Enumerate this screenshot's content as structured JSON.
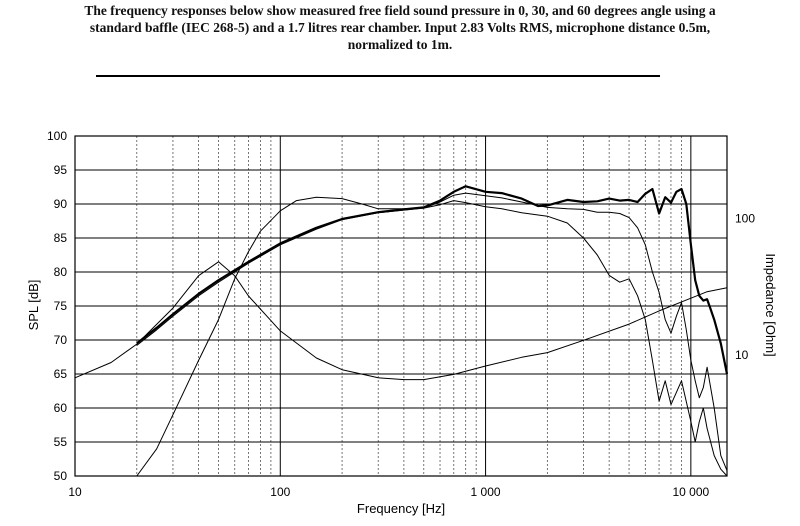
{
  "caption": {
    "line1": "The frequency responses below show measured free field sound pressure in 0, 30, and 60 degrees angle using a",
    "line2": "standard baffle (IEC 268-5)  and a 1.7 litres rear chamber.  Input 2.83 Volts RMS, microphone distance 0.5m,",
    "line3": "normalized to 1m."
  },
  "chart_data": {
    "type": "line",
    "xlabel": "Frequency [Hz]",
    "ylabel": "SPL [dB]",
    "y2label": "Impedance [Ohm]",
    "x_scale": "log",
    "xlim": [
      10,
      15000
    ],
    "ylim": [
      50,
      100
    ],
    "y2_scale": "log",
    "y2lim": [
      1.3,
      400
    ],
    "grid": true,
    "x_ticks": [
      {
        "value": 10,
        "label": "10"
      },
      {
        "value": 100,
        "label": "100"
      },
      {
        "value": 1000,
        "label": "1 000"
      },
      {
        "value": 10000,
        "label": "10 000"
      }
    ],
    "y_ticks": [
      {
        "value": 50,
        "label": "50"
      },
      {
        "value": 55,
        "label": "55"
      },
      {
        "value": 60,
        "label": "60"
      },
      {
        "value": 65,
        "label": "65"
      },
      {
        "value": 70,
        "label": "70"
      },
      {
        "value": 75,
        "label": "75"
      },
      {
        "value": 80,
        "label": "80"
      },
      {
        "value": 85,
        "label": "85"
      },
      {
        "value": 90,
        "label": "90"
      },
      {
        "value": 95,
        "label": "95"
      },
      {
        "value": 100,
        "label": "100"
      }
    ],
    "y2_ticks": [
      {
        "value": 10,
        "label": "10"
      },
      {
        "value": 100,
        "label": "100"
      }
    ],
    "series": [
      {
        "key": "spl_0deg",
        "axis": "left",
        "stroke_width": 2.2,
        "x": [
          20,
          25,
          30,
          40,
          50,
          70,
          100,
          150,
          200,
          300,
          400,
          500,
          600,
          700,
          800,
          1000,
          1200,
          1500,
          1800,
          2000,
          2500,
          3000,
          3500,
          4000,
          4500,
          5000,
          5500,
          6000,
          6500,
          7000,
          7500,
          8000,
          8500,
          9000,
          9500,
          10000,
          10500,
          11000,
          11500,
          12000,
          12500,
          13000,
          14000,
          15000
        ],
        "y": [
          69.5,
          71.8,
          73.8,
          76.8,
          78.8,
          81.5,
          84.2,
          86.5,
          87.8,
          88.8,
          89.2,
          89.5,
          90.5,
          91.8,
          92.6,
          91.8,
          91.6,
          90.8,
          89.7,
          89.8,
          90.6,
          90.3,
          90.4,
          90.8,
          90.5,
          90.6,
          90.3,
          91.5,
          92.2,
          88.6,
          91.0,
          90.2,
          91.8,
          92.2,
          90.0,
          84.0,
          78.8,
          76.5,
          75.8,
          76.0,
          74.5,
          73.0,
          69.5,
          65.0
        ]
      },
      {
        "key": "spl_30deg",
        "axis": "left",
        "stroke_width": 1,
        "x": [
          20,
          25,
          30,
          40,
          50,
          70,
          100,
          150,
          200,
          300,
          400,
          500,
          600,
          700,
          800,
          1000,
          1200,
          1500,
          2000,
          2500,
          3000,
          3500,
          4000,
          4500,
          5000,
          5500,
          6000,
          6500,
          7000,
          7500,
          8000,
          8500,
          9000,
          9500,
          10000,
          10500,
          11000,
          11500,
          12000,
          13000,
          14000,
          15000
        ],
        "y": [
          69.2,
          71.5,
          73.5,
          76.5,
          78.5,
          81.3,
          84.0,
          86.3,
          87.7,
          88.7,
          89.1,
          89.4,
          90.3,
          91.3,
          91.6,
          91.2,
          90.9,
          90.3,
          89.5,
          89.3,
          89.2,
          88.8,
          88.8,
          88.6,
          88.0,
          86.5,
          84.0,
          80.0,
          77.0,
          73.0,
          71.0,
          73.5,
          75.5,
          71.5,
          67.0,
          64.0,
          61.5,
          63.0,
          66.0,
          60.0,
          53.0,
          50.8
        ]
      },
      {
        "key": "spl_60deg",
        "axis": "left",
        "stroke_width": 1,
        "x": [
          20,
          25,
          30,
          40,
          50,
          60,
          70,
          80,
          100,
          120,
          150,
          200,
          250,
          300,
          400,
          500,
          600,
          700,
          800,
          1000,
          1200,
          1500,
          2000,
          2500,
          3000,
          3500,
          4000,
          4500,
          5000,
          5500,
          6000,
          6500,
          7000,
          7500,
          8000,
          9000,
          10000,
          10500,
          11000,
          11500,
          12000,
          13000,
          14000,
          15000
        ],
        "y": [
          50.0,
          54.0,
          59.0,
          67.0,
          73.0,
          79.0,
          83.0,
          86.0,
          89.0,
          90.5,
          91.0,
          90.8,
          90.0,
          89.3,
          89.3,
          89.4,
          89.9,
          90.5,
          90.2,
          89.6,
          89.3,
          88.7,
          88.2,
          87.2,
          85.0,
          82.5,
          79.5,
          78.5,
          79.0,
          76.5,
          73.0,
          67.0,
          61.0,
          64.0,
          60.5,
          64.0,
          58.0,
          55.0,
          58.0,
          60.0,
          57.0,
          53.0,
          51.0,
          50.0
        ]
      },
      {
        "key": "impedance",
        "axis": "right",
        "stroke_width": 1,
        "x": [
          10,
          15,
          20,
          30,
          40,
          50,
          60,
          70,
          100,
          150,
          200,
          300,
          400,
          500,
          700,
          1000,
          1500,
          2000,
          3000,
          5000,
          7000,
          10000,
          12000,
          15000
        ],
        "y": [
          6.8,
          8.8,
          12.0,
          22.0,
          38.0,
          48.0,
          38.0,
          27.0,
          15.0,
          9.5,
          7.8,
          6.8,
          6.6,
          6.6,
          7.2,
          8.3,
          9.6,
          10.4,
          12.8,
          16.8,
          21.0,
          26.0,
          29.0,
          31.0
        ]
      }
    ]
  }
}
